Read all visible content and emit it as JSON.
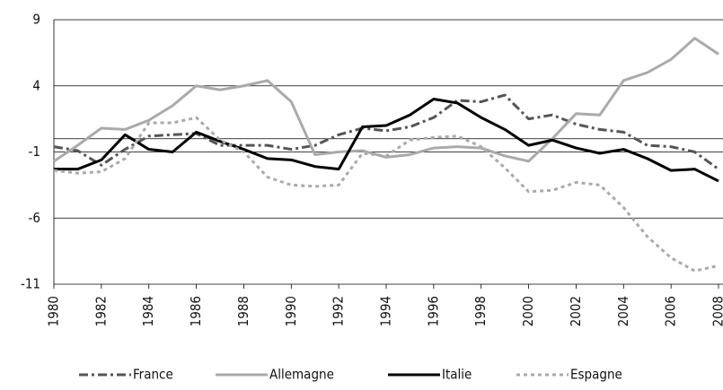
{
  "chart_data": {
    "type": "line",
    "x": [
      1980,
      1981,
      1982,
      1983,
      1984,
      1985,
      1986,
      1987,
      1988,
      1989,
      1990,
      1991,
      1992,
      1993,
      1994,
      1995,
      1996,
      1997,
      1998,
      1999,
      2000,
      2001,
      2002,
      2003,
      2004,
      2005,
      2006,
      2007,
      2008
    ],
    "xlim": [
      1980,
      2008
    ],
    "xticks": [
      1980,
      1982,
      1984,
      1986,
      1988,
      1990,
      1992,
      1994,
      1996,
      1998,
      2000,
      2002,
      2004,
      2006,
      2008
    ],
    "ylim": [
      -11,
      9
    ],
    "yticks": [
      9,
      4,
      -1,
      -6,
      -11
    ],
    "grid": true,
    "legend": "bottom",
    "series": [
      {
        "name": "France",
        "color": "#555555",
        "style": "dashdot",
        "values": [
          -0.6,
          -0.9,
          -2.0,
          -0.8,
          0.2,
          0.3,
          0.4,
          -0.5,
          -0.5,
          -0.5,
          -0.8,
          -0.5,
          0.3,
          0.8,
          0.6,
          0.9,
          1.6,
          2.9,
          2.8,
          3.3,
          1.5,
          1.8,
          1.1,
          0.7,
          0.5,
          -0.5,
          -0.6,
          -1.0,
          -2.3
        ]
      },
      {
        "name": "Allemagne",
        "color": "#aaaaaa",
        "style": "solid",
        "values": [
          -1.7,
          -0.5,
          0.8,
          0.7,
          1.4,
          2.5,
          4.0,
          3.7,
          4.0,
          4.4,
          2.8,
          -1.2,
          -1.0,
          -0.9,
          -1.4,
          -1.2,
          -0.7,
          -0.6,
          -0.7,
          -1.3,
          -1.7,
          0.0,
          1.9,
          1.8,
          4.4,
          5.0,
          6.0,
          7.6,
          6.4
        ]
      },
      {
        "name": "Italie",
        "color": "#000000",
        "style": "solid",
        "values": [
          -2.3,
          -2.3,
          -1.6,
          0.3,
          -0.8,
          -1.0,
          0.5,
          -0.2,
          -0.8,
          -1.5,
          -1.6,
          -2.1,
          -2.3,
          0.9,
          1.0,
          1.8,
          3.0,
          2.7,
          1.6,
          0.7,
          -0.5,
          -0.1,
          -0.7,
          -1.1,
          -0.8,
          -1.5,
          -2.4,
          -2.3,
          -3.2
        ]
      },
      {
        "name": "Espagne",
        "color": "#aaaaaa",
        "style": "dotted",
        "values": [
          -2.4,
          -2.6,
          -2.5,
          -1.5,
          1.2,
          1.2,
          1.6,
          -0.1,
          -1.0,
          -2.9,
          -3.5,
          -3.6,
          -3.5,
          -1.1,
          -1.3,
          -0.1,
          0.1,
          0.2,
          -0.6,
          -2.2,
          -4.0,
          -3.9,
          -3.3,
          -3.5,
          -5.2,
          -7.4,
          -9.0,
          -10.0,
          -9.6
        ]
      }
    ]
  }
}
